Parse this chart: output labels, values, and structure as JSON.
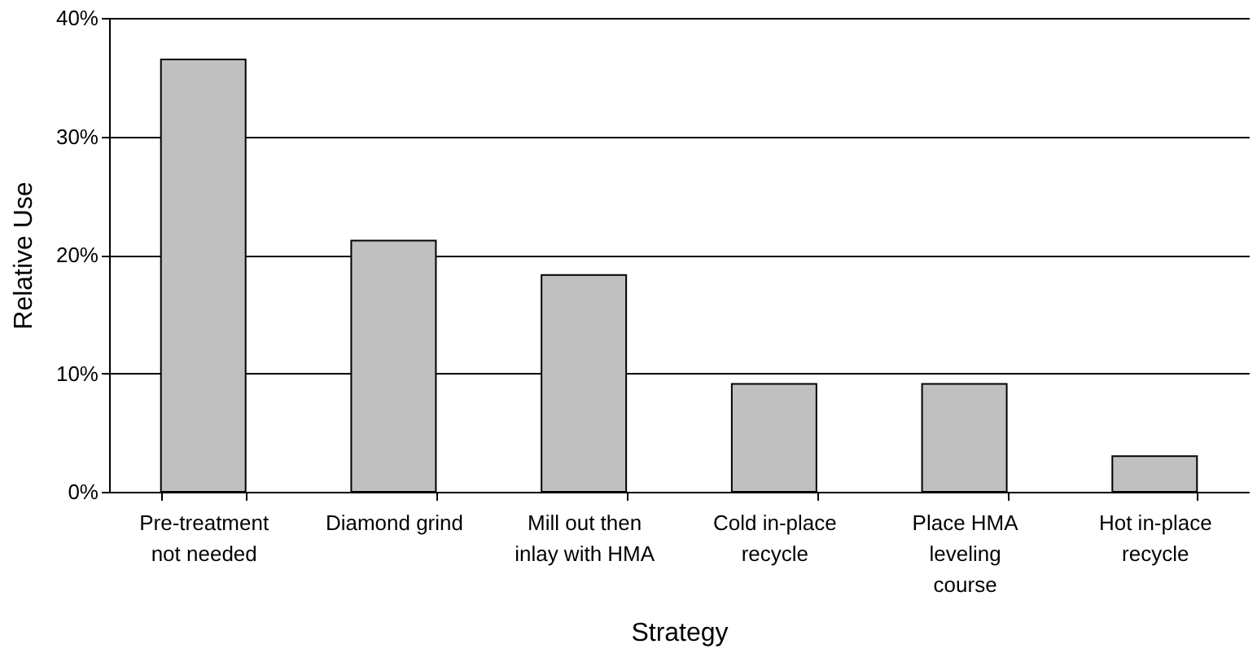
{
  "chart_data": {
    "type": "bar",
    "categories": [
      "Pre-treatment not needed",
      "Diamond grind",
      "Mill out then inlay with HMA",
      "Cold in-place recycle",
      "Place HMA leveling course",
      "Hot in-place recycle"
    ],
    "values": [
      36.5,
      21.2,
      18.3,
      9.1,
      9.1,
      3.0
    ],
    "color": "#c0c0c0",
    "xlabel": "Strategy",
    "ylabel": "Relative Use",
    "ylim": [
      0,
      40
    ],
    "yticks": [
      {
        "value": 0,
        "label": "0%"
      },
      {
        "value": 10,
        "label": "10%"
      },
      {
        "value": 20,
        "label": "20%"
      },
      {
        "value": 30,
        "label": "30%"
      },
      {
        "value": 40,
        "label": "40%"
      }
    ],
    "grid": "y"
  }
}
